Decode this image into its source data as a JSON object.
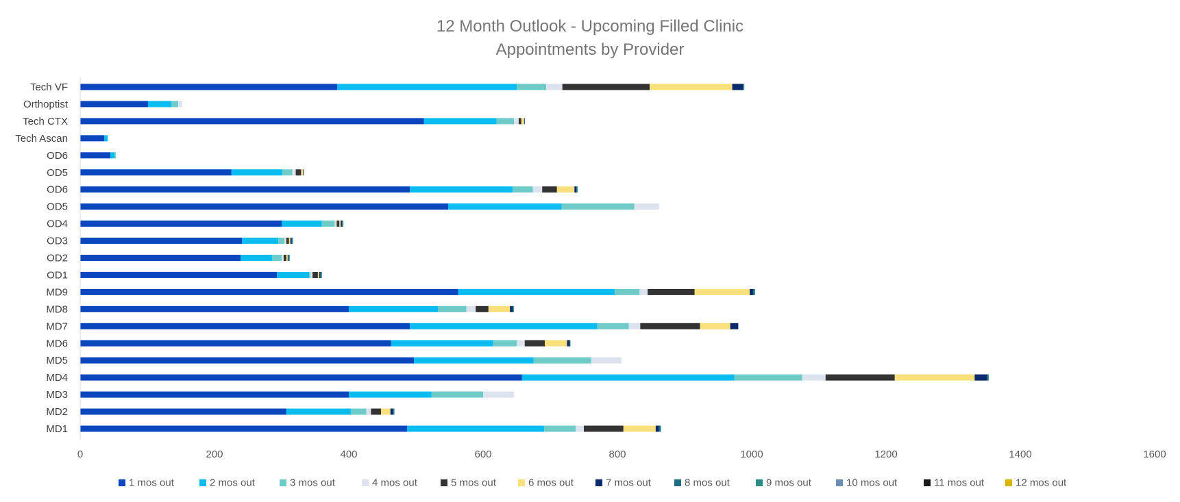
{
  "chart_data": {
    "type": "bar",
    "orientation": "horizontal",
    "stacked": true,
    "title_lines": [
      "12 Month Outlook - Upcoming Filled Clinic",
      "Appointments by Provider"
    ],
    "xlabel": "",
    "ylabel": "",
    "xlim": [
      0,
      1600
    ],
    "x_ticks": [
      0,
      200,
      400,
      600,
      800,
      1000,
      1200,
      1400,
      1600
    ],
    "grid": false,
    "legend_position": "bottom",
    "categories": [
      "MD1",
      "MD2",
      "MD3",
      "MD4",
      "MD5",
      "MD6",
      "MD7",
      "MD8",
      "MD9",
      "OD1",
      "OD2",
      "OD3",
      "OD4",
      "OD5",
      "OD6",
      "OD5",
      "OD6",
      "Tech Ascan",
      "Tech CTX",
      "Orthoptist",
      "Tech VF"
    ],
    "series": [
      {
        "name": "1 mos out",
        "color": "#0A47BE",
        "values": [
          487,
          307,
          400,
          658,
          497,
          463,
          491,
          400,
          563,
          293,
          239,
          241,
          300,
          548,
          491,
          225,
          45,
          36,
          512,
          101,
          383
        ]
      },
      {
        "name": "2 mos out",
        "color": "#0ABCF0",
        "values": [
          204,
          96,
          123,
          316,
          178,
          152,
          279,
          133,
          233,
          48,
          47,
          54,
          60,
          169,
          153,
          76,
          6,
          5,
          108,
          35,
          267
        ]
      },
      {
        "name": "3 mos out",
        "color": "#6FCBC8",
        "values": [
          47,
          23,
          77,
          101,
          86,
          35,
          47,
          42,
          37,
          2,
          14,
          9,
          19,
          108,
          30,
          15,
          2,
          0,
          26,
          10,
          44
        ]
      },
      {
        "name": "4 mos out",
        "color": "#DCE3EE",
        "values": [
          12,
          7,
          46,
          35,
          45,
          12,
          17,
          14,
          12,
          3,
          3,
          3,
          3,
          37,
          14,
          5,
          0,
          0,
          7,
          6,
          24
        ]
      },
      {
        "name": "5 mos out",
        "color": "#333333",
        "values": [
          59,
          15,
          0,
          103,
          0,
          30,
          89,
          19,
          70,
          8,
          4,
          4,
          4,
          0,
          22,
          8,
          0,
          0,
          4,
          0,
          130
        ]
      },
      {
        "name": "6 mos out",
        "color": "#F8E07C",
        "values": [
          48,
          14,
          0,
          119,
          0,
          33,
          45,
          32,
          82,
          2,
          2,
          2,
          2,
          0,
          26,
          3,
          0,
          0,
          4,
          0,
          123
        ]
      },
      {
        "name": "7 mos out",
        "color": "#0B2A6E",
        "values": [
          5,
          4,
          0,
          18,
          0,
          4,
          12,
          4,
          5,
          2,
          1,
          2,
          2,
          0,
          3,
          1,
          0,
          0,
          1,
          0,
          16
        ]
      },
      {
        "name": "8 mos out",
        "color": "#1C6E80",
        "values": [
          2,
          1,
          0,
          2,
          0,
          1,
          0,
          1,
          2,
          1,
          1,
          1,
          1,
          0,
          1,
          0,
          0,
          0,
          0,
          0,
          1
        ]
      },
      {
        "name": "9 mos out",
        "color": "#2B8C86",
        "values": [
          1,
          1,
          0,
          1,
          0,
          0,
          0,
          1,
          1,
          1,
          1,
          1,
          1,
          0,
          1,
          0,
          0,
          0,
          0,
          0,
          1
        ]
      },
      {
        "name": "10 mos out",
        "color": "#6A8DB4",
        "values": [
          0,
          0,
          0,
          0,
          0,
          0,
          0,
          0,
          0,
          0,
          0,
          0,
          0,
          0,
          0,
          0,
          0,
          0,
          0,
          0,
          0
        ]
      },
      {
        "name": "11 mos out",
        "color": "#1A1A1A",
        "values": [
          0,
          0,
          0,
          0,
          0,
          0,
          0,
          0,
          0,
          0,
          0,
          0,
          0,
          0,
          0,
          0,
          0,
          0,
          0,
          0,
          0
        ]
      },
      {
        "name": "12 mos out",
        "color": "#D9B400",
        "values": [
          0,
          0,
          0,
          0,
          0,
          0,
          0,
          0,
          0,
          0,
          0,
          0,
          0,
          0,
          0,
          0,
          0,
          0,
          0,
          0,
          0
        ]
      }
    ]
  }
}
